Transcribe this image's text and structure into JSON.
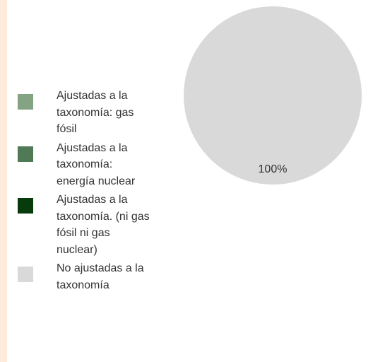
{
  "chart_data": {
    "type": "pie",
    "categories": [
      "Ajustadas a la taxonomía: gas fósil",
      "Ajustadas a la taxonomía: energía nuclear",
      "Ajustadas a la taxonomía. (ni gas fósil ni gas nuclear)",
      "No ajustadas a la taxonomía"
    ],
    "values": [
      0,
      0,
      0,
      100
    ],
    "value_labels": [
      null,
      null,
      null,
      "100%"
    ],
    "colors": [
      "#83a383",
      "#4f7a55",
      "#073b0c",
      "#d9d9d9"
    ]
  }
}
